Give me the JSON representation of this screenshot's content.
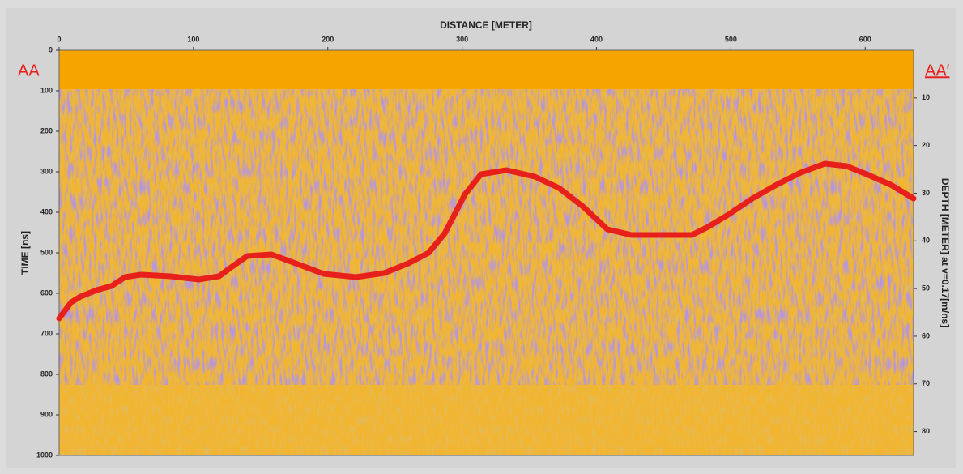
{
  "chart_data": {
    "type": "line",
    "x_label": "DISTANCE [METER]",
    "y_label": "TIME [ns]",
    "y2_label": "DEPTH [METER] at v=0.17[m/ns]",
    "annotations": [
      "AA",
      "AA′"
    ],
    "x": [
      0,
      9,
      16,
      28,
      39,
      49,
      61,
      83,
      104,
      119,
      128,
      140,
      158,
      176,
      197,
      221,
      242,
      260,
      275,
      287,
      302,
      314,
      333,
      354,
      372,
      390,
      408,
      426,
      450,
      471,
      483,
      498,
      516,
      534,
      552,
      570,
      586,
      601,
      619,
      636
    ],
    "values": [
      662,
      622,
      608,
      592,
      582,
      560,
      554,
      558,
      566,
      558,
      536,
      508,
      504,
      526,
      552,
      560,
      550,
      526,
      500,
      452,
      356,
      306,
      296,
      312,
      340,
      386,
      442,
      456,
      456,
      456,
      436,
      406,
      366,
      332,
      302,
      280,
      286,
      306,
      332,
      366
    ],
    "color": "#e8201c",
    "xlim": [
      0,
      636
    ],
    "xticks": [
      0,
      100,
      200,
      300,
      400,
      500,
      600
    ],
    "ylim": [
      1000,
      0
    ],
    "yticks": [
      0,
      100,
      200,
      300,
      400,
      500,
      600,
      700,
      800,
      900,
      1000
    ],
    "y2lim": [
      85,
      0
    ],
    "y2ticks": [
      10,
      20,
      30,
      40,
      50,
      60,
      70,
      80
    ]
  }
}
